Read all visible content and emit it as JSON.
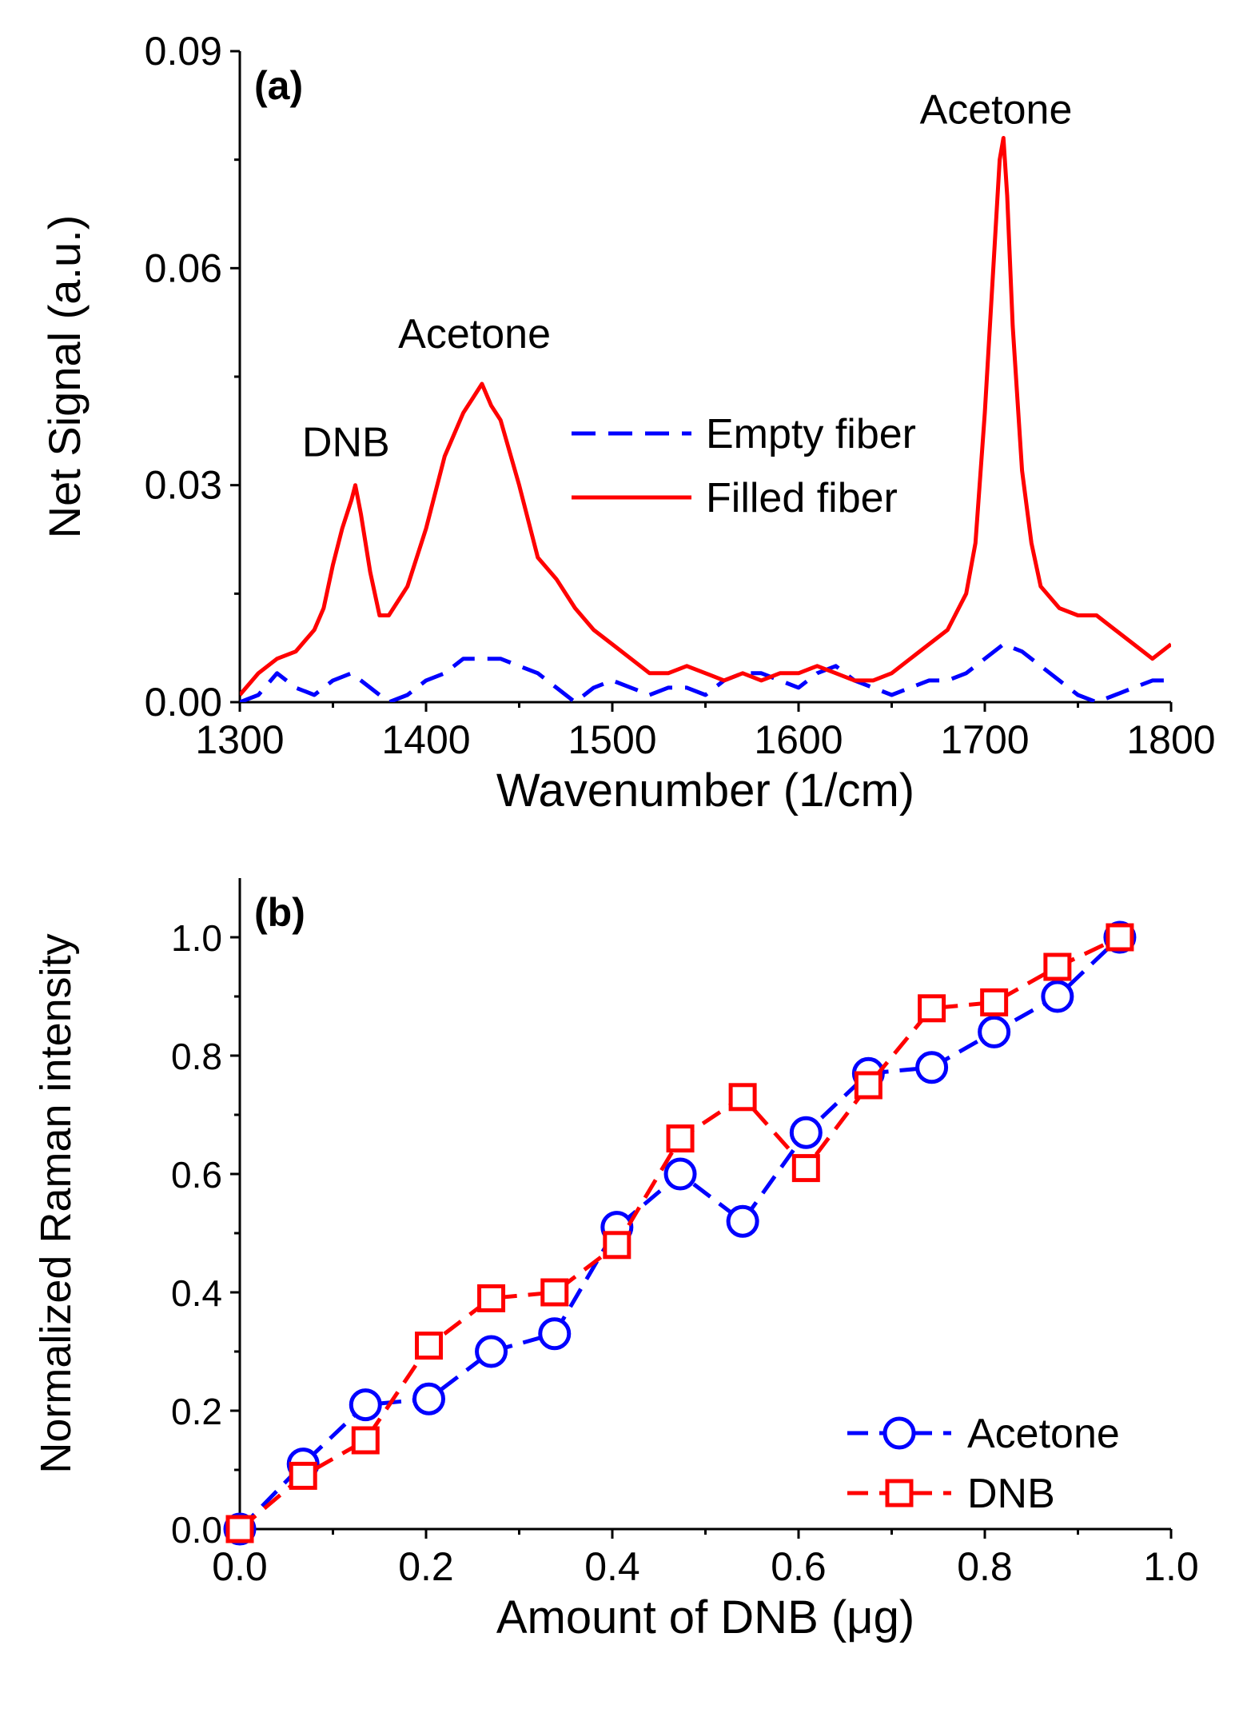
{
  "chart_data": [
    {
      "panel_label": "(a)",
      "type": "line",
      "xlabel": "Wavenumber (1/cm)",
      "ylabel": "Net Signal (a.u.)",
      "xlim": [
        1300,
        1800
      ],
      "ylim": [
        0,
        0.09
      ],
      "xticks": [
        1300,
        1400,
        1500,
        1600,
        1700,
        1800
      ],
      "xtick_labels": [
        "1300",
        "1400",
        "1500",
        "1600",
        "1700",
        "1800"
      ],
      "yticks": [
        0,
        0.03,
        0.06,
        0.09
      ],
      "ytick_labels": [
        "0.00",
        "0.03",
        "0.06",
        "0.09"
      ],
      "legend_position": "center-right",
      "grid": false,
      "annotations": [
        {
          "text": "DNB",
          "x": 1357,
          "y": 0.034
        },
        {
          "text": "Acetone",
          "x": 1426,
          "y": 0.049
        },
        {
          "text": "Acetone",
          "x": 1706,
          "y": 0.08
        }
      ],
      "series": [
        {
          "name": "Empty fiber",
          "style": "dashed",
          "color": "#0000ff",
          "x": [
            1300,
            1310,
            1320,
            1330,
            1340,
            1350,
            1360,
            1370,
            1380,
            1390,
            1400,
            1410,
            1420,
            1430,
            1440,
            1450,
            1460,
            1470,
            1480,
            1490,
            1500,
            1510,
            1520,
            1530,
            1540,
            1550,
            1560,
            1570,
            1580,
            1590,
            1600,
            1610,
            1620,
            1630,
            1640,
            1650,
            1660,
            1670,
            1680,
            1690,
            1700,
            1710,
            1720,
            1730,
            1740,
            1750,
            1760,
            1770,
            1780,
            1790,
            1800
          ],
          "y": [
            0.0,
            0.001,
            0.004,
            0.002,
            0.001,
            0.003,
            0.004,
            0.002,
            0.0,
            0.001,
            0.003,
            0.004,
            0.006,
            0.006,
            0.006,
            0.005,
            0.004,
            0.002,
            0.0,
            0.002,
            0.003,
            0.002,
            0.001,
            0.002,
            0.002,
            0.001,
            0.003,
            0.004,
            0.004,
            0.003,
            0.002,
            0.004,
            0.005,
            0.003,
            0.002,
            0.001,
            0.002,
            0.003,
            0.003,
            0.004,
            0.006,
            0.008,
            0.007,
            0.005,
            0.003,
            0.001,
            0.0,
            0.001,
            0.002,
            0.003,
            0.003
          ]
        },
        {
          "name": "Filled fiber",
          "style": "solid",
          "color": "#ff0000",
          "x": [
            1300,
            1310,
            1320,
            1330,
            1340,
            1345,
            1350,
            1355,
            1360,
            1362,
            1365,
            1370,
            1375,
            1380,
            1390,
            1400,
            1410,
            1420,
            1425,
            1430,
            1435,
            1440,
            1450,
            1460,
            1470,
            1480,
            1490,
            1500,
            1510,
            1520,
            1530,
            1540,
            1550,
            1560,
            1570,
            1580,
            1590,
            1600,
            1610,
            1620,
            1630,
            1640,
            1650,
            1660,
            1670,
            1680,
            1690,
            1695,
            1700,
            1705,
            1708,
            1710,
            1712,
            1715,
            1720,
            1725,
            1730,
            1740,
            1750,
            1760,
            1770,
            1780,
            1790,
            1800
          ],
          "y": [
            0.001,
            0.004,
            0.006,
            0.007,
            0.01,
            0.013,
            0.019,
            0.024,
            0.028,
            0.03,
            0.026,
            0.018,
            0.012,
            0.012,
            0.016,
            0.024,
            0.034,
            0.04,
            0.042,
            0.044,
            0.041,
            0.039,
            0.03,
            0.02,
            0.017,
            0.013,
            0.01,
            0.008,
            0.006,
            0.004,
            0.004,
            0.005,
            0.004,
            0.003,
            0.004,
            0.003,
            0.004,
            0.004,
            0.005,
            0.004,
            0.003,
            0.003,
            0.004,
            0.006,
            0.008,
            0.01,
            0.015,
            0.022,
            0.04,
            0.062,
            0.075,
            0.078,
            0.07,
            0.052,
            0.032,
            0.022,
            0.016,
            0.013,
            0.012,
            0.012,
            0.01,
            0.008,
            0.006,
            0.008
          ]
        }
      ]
    },
    {
      "panel_label": "(b)",
      "type": "line",
      "xlabel": "Amount of DNB (μg)",
      "ylabel": "Normalized Raman intensity",
      "xlim": [
        0.0,
        1.0
      ],
      "ylim": [
        0.0,
        1.1
      ],
      "xticks": [
        0.0,
        0.2,
        0.4,
        0.6,
        0.8,
        1.0
      ],
      "xtick_labels": [
        "0.0",
        "0.2",
        "0.4",
        "0.6",
        "0.8",
        "1.0"
      ],
      "yticks": [
        0.0,
        0.2,
        0.4,
        0.6,
        0.8,
        1.0
      ],
      "ytick_labels": [
        "0.0",
        "0.2",
        "0.4",
        "0.6",
        "0.8",
        "1.0"
      ],
      "legend_position": "bottom-right",
      "grid": false,
      "series": [
        {
          "name": "Acetone",
          "marker": "circle",
          "style": "dashed",
          "color": "#0000ff",
          "x": [
            0.0,
            0.068,
            0.135,
            0.203,
            0.27,
            0.338,
            0.405,
            0.473,
            0.54,
            0.608,
            0.675,
            0.743,
            0.81,
            0.878,
            0.945
          ],
          "y": [
            0.0,
            0.11,
            0.21,
            0.22,
            0.3,
            0.33,
            0.51,
            0.6,
            0.52,
            0.67,
            0.77,
            0.78,
            0.84,
            0.9,
            1.0
          ]
        },
        {
          "name": "DNB",
          "marker": "square",
          "style": "dashed",
          "color": "#ff0000",
          "x": [
            0.0,
            0.068,
            0.135,
            0.203,
            0.27,
            0.338,
            0.405,
            0.473,
            0.54,
            0.608,
            0.675,
            0.743,
            0.81,
            0.878,
            0.945
          ],
          "y": [
            0.0,
            0.09,
            0.15,
            0.31,
            0.39,
            0.4,
            0.48,
            0.66,
            0.73,
            0.61,
            0.75,
            0.88,
            0.89,
            0.95,
            1.0
          ]
        }
      ]
    }
  ]
}
